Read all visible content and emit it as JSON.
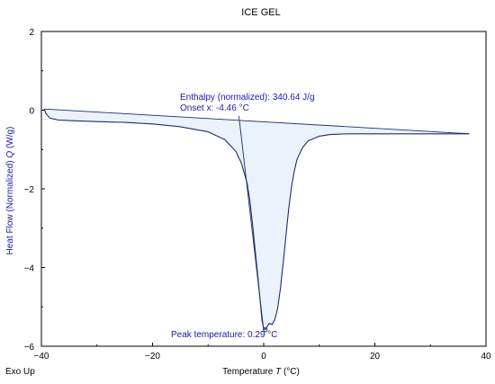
{
  "chart_data": {
    "type": "line",
    "title": "ICE GEL",
    "xlabel": "Temperature",
    "xlabel_symbol": "T",
    "xlabel_unit": "(°C)",
    "ylabel": "Heat Flow (Normalized)",
    "ylabel_symbol": "Q",
    "ylabel_unit": "(W/g)",
    "corner_label": "Exo Up",
    "xlim": [
      -40,
      40
    ],
    "ylim": [
      -6,
      2
    ],
    "x_ticks": [
      -40,
      -20,
      0,
      20,
      40
    ],
    "x_tick_labels": [
      "−40",
      "−20",
      "0",
      "20",
      "40"
    ],
    "y_ticks": [
      2,
      0,
      -2,
      -4,
      -6
    ],
    "y_tick_labels": [
      "2",
      "0",
      "−2",
      "−4",
      "−6"
    ],
    "grid": false,
    "series": [
      {
        "color": "#1f2f6b",
        "x": [
          -39.5,
          -39.2,
          -38.5,
          -37,
          -34,
          -30,
          -25,
          -20,
          -15,
          -10,
          -7,
          -5,
          -4,
          -3,
          -2.5,
          -2,
          -1.5,
          -1,
          -0.6,
          -0.3,
          0,
          0.3,
          0.6,
          1,
          1.5,
          2,
          2.5,
          3,
          3.5,
          4,
          4.5,
          5,
          5.5,
          6,
          7,
          8,
          10,
          12,
          15,
          20,
          25,
          30,
          34,
          37
        ],
        "y": [
          0.03,
          -0.08,
          -0.2,
          -0.25,
          -0.27,
          -0.29,
          -0.31,
          -0.35,
          -0.42,
          -0.55,
          -0.75,
          -1.05,
          -1.35,
          -1.85,
          -2.3,
          -2.9,
          -3.6,
          -4.3,
          -4.9,
          -5.35,
          -5.55,
          -5.58,
          -5.5,
          -5.42,
          -5.45,
          -5.32,
          -5.05,
          -4.55,
          -3.9,
          -3.2,
          -2.5,
          -1.95,
          -1.55,
          -1.25,
          -0.95,
          -0.78,
          -0.66,
          -0.62,
          -0.6,
          -0.6,
          -0.6,
          -0.6,
          -0.6,
          -0.6
        ]
      }
    ],
    "baseline": {
      "color": "#1f2f6b",
      "x": [
        -39.5,
        37
      ],
      "y": [
        0.03,
        -0.6
      ]
    },
    "onset_tangent": {
      "color": "#1f2f6b",
      "x": [
        -4.46,
        0
      ],
      "y": [
        -0.15,
        -5.6
      ]
    },
    "fill_color": "#eaf3fb",
    "peak_marker": {
      "x": 0.29,
      "y": -5.58,
      "color": "#1f2f6b"
    },
    "annotations": {
      "enthalpy": "Enthalpy (normalized): 340.64 J/g",
      "onset": "Onset x: -4.46 °C",
      "peak": "Peak temperature: 0.29 °C"
    }
  }
}
